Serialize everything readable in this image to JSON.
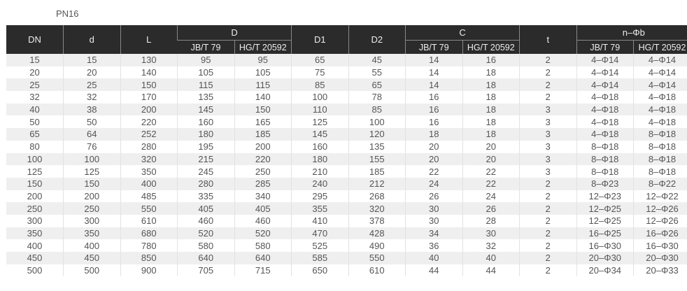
{
  "title": "PN16",
  "headers": {
    "dn": "DN",
    "d": "d",
    "l": "L",
    "D": "D",
    "d1": "D1",
    "d2": "D2",
    "c": "C",
    "t": "t",
    "nphib": "n–Φb",
    "sub_jb": "JB/T 79",
    "sub_hg": "HG/T 20592"
  },
  "rows": [
    [
      "15",
      "15",
      "130",
      "95",
      "95",
      "65",
      "45",
      "14",
      "16",
      "2",
      "4–Φ14",
      "4–Φ14"
    ],
    [
      "20",
      "20",
      "140",
      "105",
      "105",
      "75",
      "55",
      "14",
      "18",
      "2",
      "4–Φ14",
      "4–Φ14"
    ],
    [
      "25",
      "25",
      "150",
      "115",
      "115",
      "85",
      "65",
      "14",
      "18",
      "2",
      "4–Φ14",
      "4–Φ14"
    ],
    [
      "32",
      "32",
      "170",
      "135",
      "140",
      "100",
      "78",
      "16",
      "18",
      "2",
      "4–Φ18",
      "4–Φ18"
    ],
    [
      "40",
      "38",
      "200",
      "145",
      "150",
      "110",
      "85",
      "16",
      "18",
      "3",
      "4–Φ18",
      "4–Φ18"
    ],
    [
      "50",
      "50",
      "220",
      "160",
      "165",
      "125",
      "100",
      "16",
      "18",
      "3",
      "4–Φ18",
      "4–Φ18"
    ],
    [
      "65",
      "64",
      "252",
      "180",
      "185",
      "145",
      "120",
      "18",
      "18",
      "3",
      "4–Φ18",
      "8–Φ18"
    ],
    [
      "80",
      "76",
      "280",
      "195",
      "200",
      "160",
      "135",
      "20",
      "20",
      "3",
      "8–Φ18",
      "8–Φ18"
    ],
    [
      "100",
      "100",
      "320",
      "215",
      "220",
      "180",
      "155",
      "20",
      "20",
      "3",
      "8–Φ18",
      "8–Φ18"
    ],
    [
      "125",
      "125",
      "350",
      "245",
      "250",
      "210",
      "185",
      "22",
      "22",
      "3",
      "8–Φ18",
      "8–Φ18"
    ],
    [
      "150",
      "150",
      "400",
      "280",
      "285",
      "240",
      "212",
      "24",
      "22",
      "2",
      "8–Φ23",
      "8–Φ22"
    ],
    [
      "200",
      "200",
      "485",
      "335",
      "340",
      "295",
      "268",
      "26",
      "24",
      "2",
      "12–Φ23",
      "12–Φ22"
    ],
    [
      "250",
      "250",
      "550",
      "405",
      "405",
      "355",
      "320",
      "30",
      "26",
      "2",
      "12–Φ25",
      "12–Φ26"
    ],
    [
      "300",
      "300",
      "610",
      "460",
      "460",
      "410",
      "378",
      "30",
      "28",
      "2",
      "12–Φ25",
      "12–Φ26"
    ],
    [
      "350",
      "350",
      "680",
      "520",
      "520",
      "470",
      "428",
      "34",
      "30",
      "2",
      "16–Φ25",
      "16–Φ26"
    ],
    [
      "400",
      "400",
      "780",
      "580",
      "580",
      "525",
      "490",
      "36",
      "32",
      "2",
      "16–Φ30",
      "16–Φ30"
    ],
    [
      "450",
      "450",
      "850",
      "640",
      "640",
      "585",
      "550",
      "40",
      "40",
      "2",
      "20–Φ30",
      "20–Φ30"
    ],
    [
      "500",
      "500",
      "900",
      "705",
      "715",
      "650",
      "610",
      "44",
      "44",
      "2",
      "20–Φ34",
      "20–Φ33"
    ]
  ]
}
